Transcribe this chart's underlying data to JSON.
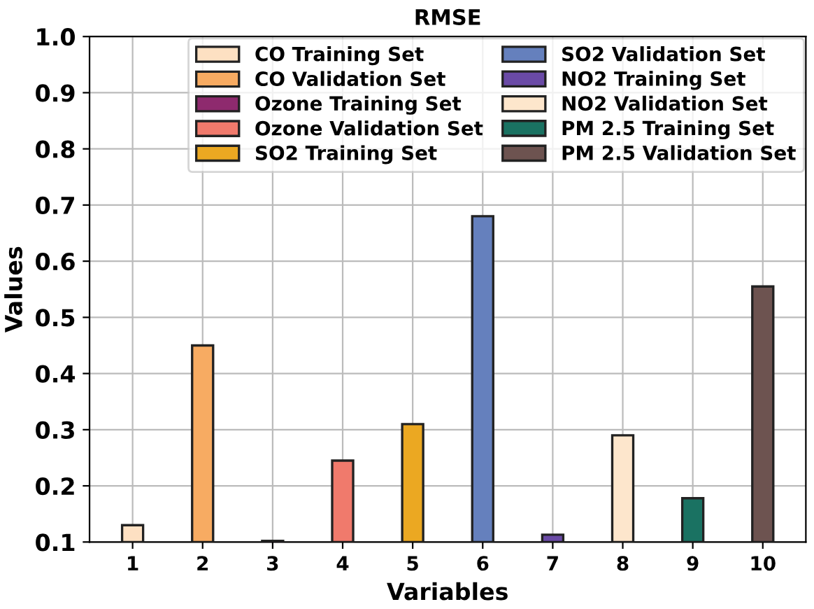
{
  "chart_data": {
    "type": "bar",
    "title": "RMSE",
    "xlabel": "Variables",
    "ylabel": "Values",
    "categories": [
      "1",
      "2",
      "3",
      "4",
      "5",
      "6",
      "7",
      "8",
      "9",
      "10"
    ],
    "series": [
      {
        "name": "CO Training Set",
        "color": "#fde0c2",
        "values": [
          0.13,
          null,
          null,
          null,
          null,
          null,
          null,
          null,
          null,
          null
        ]
      },
      {
        "name": "CO Validation Set",
        "color": "#f7ab62",
        "values": [
          null,
          0.45,
          null,
          null,
          null,
          null,
          null,
          null,
          null,
          null
        ]
      },
      {
        "name": "Ozone Training Set",
        "color": "#8e2a6e",
        "values": [
          null,
          null,
          0.102,
          null,
          null,
          null,
          null,
          null,
          null,
          null
        ]
      },
      {
        "name": "Ozone Validation Set",
        "color": "#f07a6c",
        "values": [
          null,
          null,
          null,
          0.245,
          null,
          null,
          null,
          null,
          null,
          null
        ]
      },
      {
        "name": "SO2 Training Set",
        "color": "#eba822",
        "values": [
          null,
          null,
          null,
          null,
          0.31,
          null,
          null,
          null,
          null,
          null
        ]
      },
      {
        "name": "SO2 Validation Set",
        "color": "#6580bd",
        "values": [
          null,
          null,
          null,
          null,
          null,
          0.68,
          null,
          null,
          null,
          null
        ]
      },
      {
        "name": "NO2 Training Set",
        "color": "#6a4aa6",
        "values": [
          null,
          null,
          null,
          null,
          null,
          null,
          0.113,
          null,
          null,
          null
        ]
      },
      {
        "name": "NO2 Validation Set",
        "color": "#fde6cc",
        "values": [
          null,
          null,
          null,
          null,
          null,
          null,
          null,
          0.29,
          null,
          null
        ]
      },
      {
        "name": "PM 2.5 Training Set",
        "color": "#1a7262",
        "values": [
          null,
          null,
          null,
          null,
          null,
          null,
          null,
          null,
          0.178,
          null
        ]
      },
      {
        "name": "PM 2.5 Validation Set",
        "color": "#6d5350",
        "values": [
          null,
          null,
          null,
          null,
          null,
          null,
          null,
          null,
          null,
          0.555
        ]
      }
    ],
    "ylim": [
      0.1,
      1.0
    ],
    "yticks": [
      0.1,
      0.2,
      0.3,
      0.4,
      0.5,
      0.6,
      0.7,
      0.8,
      0.9,
      {
        "value": 1.0,
        "label": "1.0"
      }
    ],
    "grid": true,
    "legend": "top right"
  }
}
